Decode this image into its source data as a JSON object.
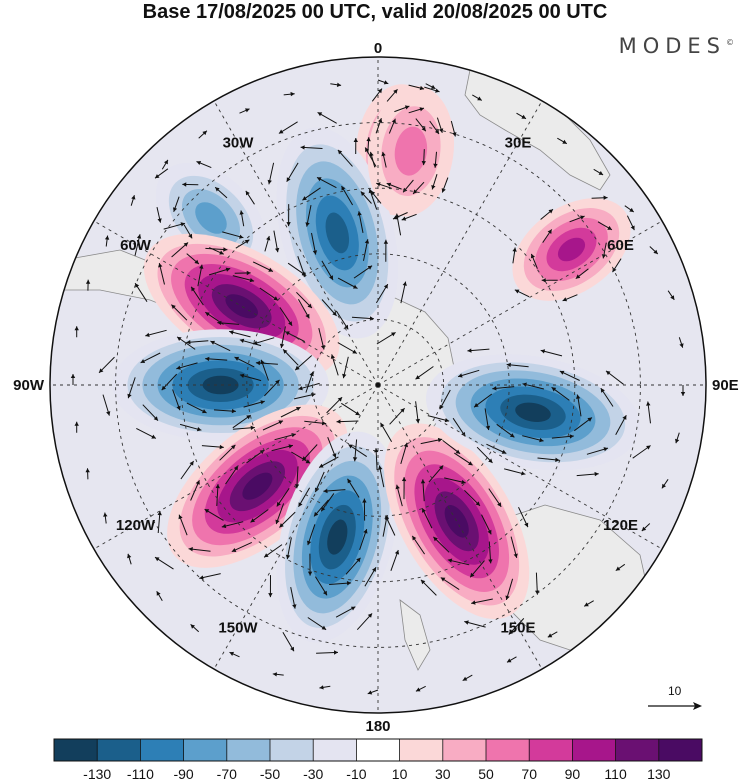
{
  "header": {
    "title": "Base 17/08/2025 00 UTC, valid 20/08/2025 00 UTC",
    "logo_text": "MODES",
    "logo_mark": "©"
  },
  "chart_data": {
    "type": "polar-stereographic-map",
    "title": "Base 17/08/2025 00 UTC, valid 20/08/2025 00 UTC",
    "hemisphere": "south",
    "longitude_labels": [
      {
        "lon": 0,
        "text": "0"
      },
      {
        "lon": 30,
        "text": "30E"
      },
      {
        "lon": 60,
        "text": "60E"
      },
      {
        "lon": 90,
        "text": "90E"
      },
      {
        "lon": 120,
        "text": "120E"
      },
      {
        "lon": 150,
        "text": "150E"
      },
      {
        "lon": 180,
        "text": "180"
      },
      {
        "lon": -150,
        "text": "150W"
      },
      {
        "lon": -120,
        "text": "120W"
      },
      {
        "lon": -90,
        "text": "90W"
      },
      {
        "lon": -60,
        "text": "60W"
      },
      {
        "lon": -30,
        "text": "30W"
      }
    ],
    "anomaly_centers": [
      {
        "sign": "positive",
        "lon": 5,
        "strength": 60
      },
      {
        "sign": "negative",
        "lon": -45,
        "strength": 60
      },
      {
        "sign": "negative",
        "lon": -15,
        "strength": 115
      },
      {
        "sign": "positive",
        "lon": -60,
        "strength": 135
      },
      {
        "sign": "negative",
        "lon": -90,
        "strength": 130
      },
      {
        "sign": "positive",
        "lon": -130,
        "strength": 135
      },
      {
        "sign": "negative",
        "lon": -165,
        "strength": 130
      },
      {
        "sign": "positive",
        "lon": 150,
        "strength": 135
      },
      {
        "sign": "negative",
        "lon": 100,
        "strength": 130
      },
      {
        "sign": "positive",
        "lon": 55,
        "strength": 85
      },
      {
        "sign": "positive",
        "lon": 8,
        "strength": 40
      }
    ],
    "colorbar": {
      "levels": [
        -130,
        -110,
        -90,
        -70,
        -50,
        -30,
        -10,
        10,
        30,
        50,
        70,
        90,
        110,
        130
      ],
      "tick_labels": [
        "-130",
        "-110",
        "-90",
        "-70",
        "-50",
        "-30",
        "-10",
        "10",
        "30",
        "50",
        "70",
        "90",
        "110",
        "130"
      ],
      "colors": [
        "#123e5c",
        "#1b5f8b",
        "#2d7fb6",
        "#5c9fcc",
        "#92bbdb",
        "#c3d3e7",
        "#e4e4f1",
        "#ffffff",
        "#fbd8d8",
        "#f8acc3",
        "#ef74ad",
        "#d33a9b",
        "#a7168b",
        "#6a1072",
        "#4a0b63"
      ]
    },
    "vector_reference": {
      "value": 10,
      "label": "10"
    }
  },
  "colors": {
    "land": "#ebebeb",
    "coast": "#8a8a8a",
    "grid": "#333333"
  }
}
